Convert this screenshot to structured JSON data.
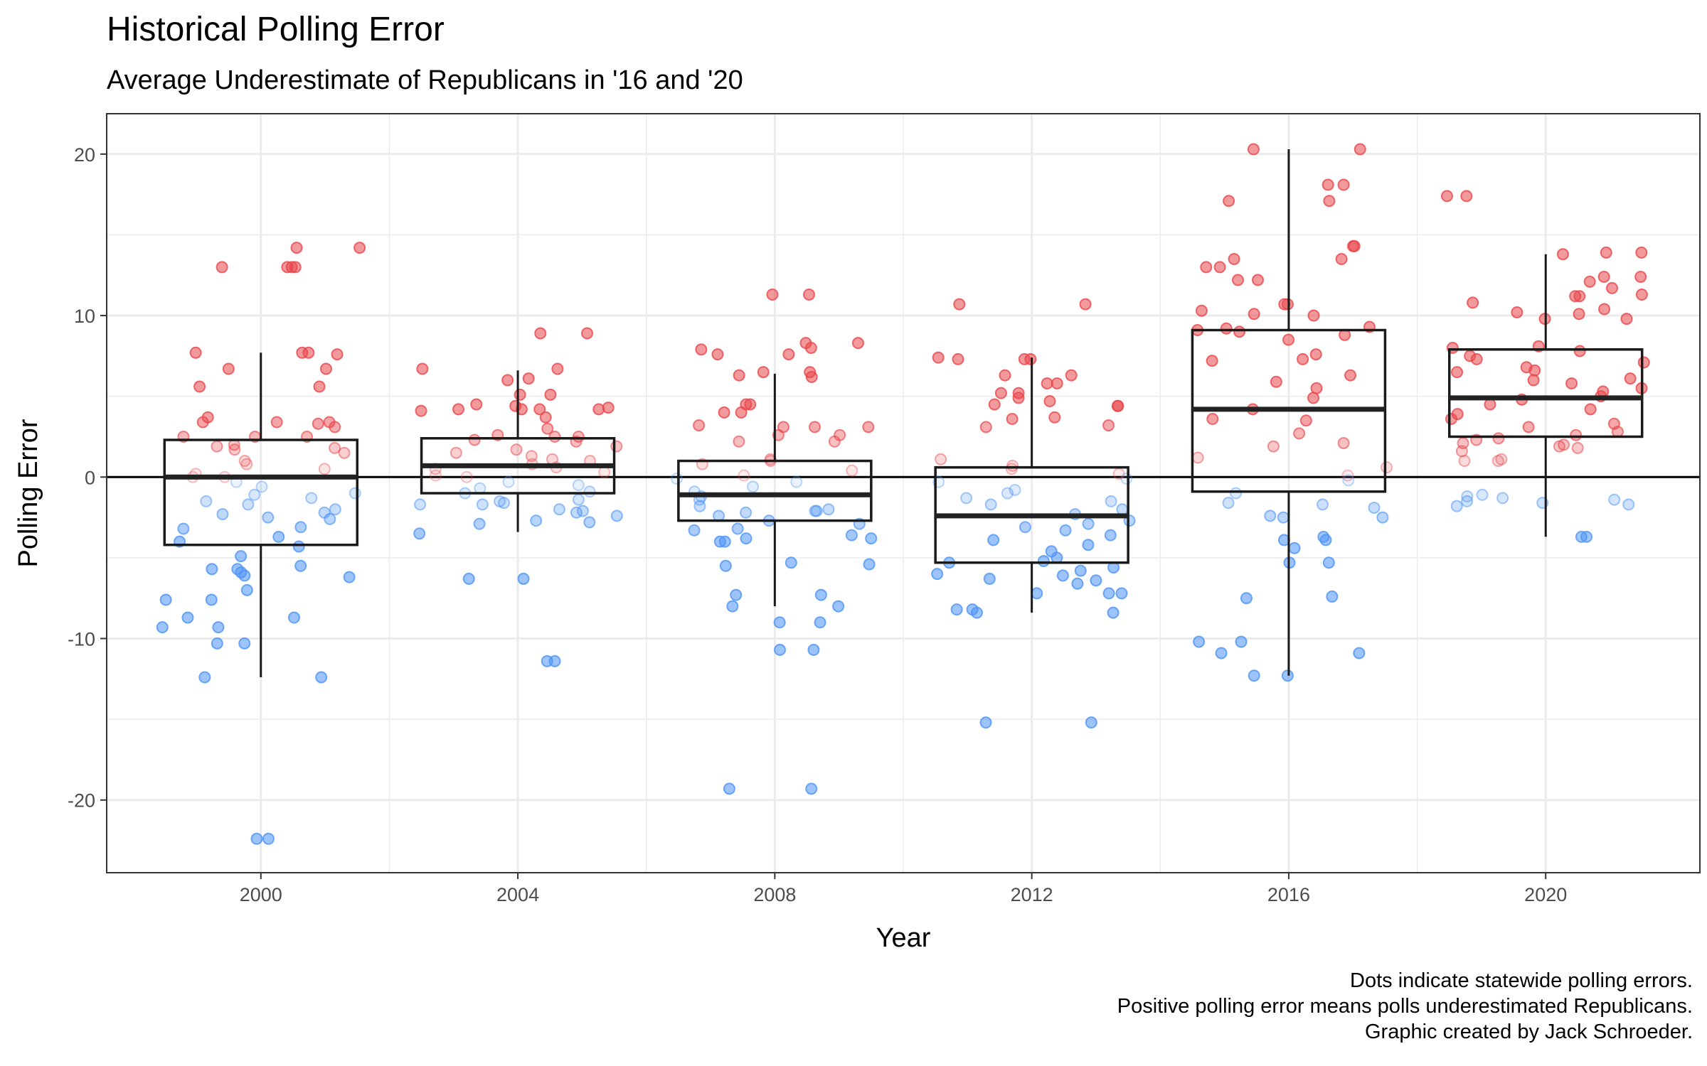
{
  "title": "Historical Polling Error",
  "subtitle": "Average Underestimate of Republicans in '16 and '20",
  "caption": [
    "Dots indicate statewide polling errors.",
    "Positive polling error means polls underestimated Republicans.",
    "Graphic created by Jack Schroeder."
  ],
  "colors": {
    "republican": "#e8464b",
    "democrat": "#4d94f5",
    "box": "#1a1a1a",
    "grid": "#ebebeb"
  },
  "chart_data": {
    "type": "box",
    "xlabel": "Year",
    "ylabel": "Polling Error",
    "xlim": [
      1997.6,
      2022.4
    ],
    "ylim": [
      -24.5,
      22.5
    ],
    "xticks": [
      2000,
      2004,
      2008,
      2012,
      2016,
      2020
    ],
    "yticks": [
      -20,
      -10,
      0,
      10,
      20
    ],
    "reference_line": 0,
    "grid": true,
    "boxes": [
      {
        "year": 2000,
        "whisker_low": -12.4,
        "q1": -4.2,
        "median": 0.0,
        "q3": 2.3,
        "whisker_high": 7.7
      },
      {
        "year": 2004,
        "whisker_low": -3.4,
        "q1": -1.0,
        "median": 0.7,
        "q3": 2.4,
        "whisker_high": 6.6
      },
      {
        "year": 2008,
        "whisker_low": -8.0,
        "q1": -2.7,
        "median": -1.1,
        "q3": 1.0,
        "whisker_high": 6.4
      },
      {
        "year": 2012,
        "whisker_low": -8.4,
        "q1": -5.3,
        "median": -2.4,
        "q3": 0.6,
        "whisker_high": 7.4
      },
      {
        "year": 2016,
        "whisker_low": -12.3,
        "q1": -0.9,
        "median": 4.2,
        "q3": 9.1,
        "whisker_high": 20.3
      },
      {
        "year": 2020,
        "whisker_low": -3.7,
        "q1": 2.5,
        "median": 4.9,
        "q3": 7.9,
        "whisker_high": 13.8
      }
    ],
    "points": [
      {
        "year": 2000,
        "values": [
          13.0,
          13.0,
          13.0,
          14.2,
          14.2,
          13.0,
          7.7,
          7.6,
          7.7,
          6.7,
          7.7,
          6.7,
          5.6,
          5.6,
          3.4,
          3.7,
          3.4,
          3.3,
          3.1,
          3.4,
          2.5,
          2.5,
          2.5,
          2.0,
          1.9,
          1.7,
          1.5,
          1.8,
          1.0,
          0.8,
          0.5,
          0.2,
          0.0,
          0.0,
          -0.3,
          -0.6,
          -1.0,
          -1.1,
          -1.3,
          -1.5,
          -1.7,
          -2.0,
          -2.2,
          -2.3,
          -2.5,
          -2.6,
          -3.1,
          -3.2,
          -3.7,
          -4.0,
          -4.3,
          -4.9,
          -5.5,
          -5.7,
          -5.7,
          -5.9,
          -6.1,
          -6.2,
          -7.0,
          -7.6,
          -7.6,
          -8.7,
          -8.7,
          -9.3,
          -9.3,
          -10.3,
          -10.3,
          -12.4,
          -12.4,
          -22.4,
          -22.4
        ]
      },
      {
        "year": 2004,
        "values": [
          8.9,
          8.9,
          6.7,
          6.7,
          6.1,
          6.0,
          5.1,
          5.1,
          4.5,
          4.4,
          4.3,
          4.2,
          4.2,
          4.2,
          4.2,
          4.1,
          3.7,
          3.0,
          2.6,
          2.5,
          2.5,
          2.3,
          2.2,
          1.9,
          1.7,
          1.5,
          1.3,
          1.1,
          1.0,
          0.8,
          0.6,
          0.5,
          0.3,
          0.1,
          0.0,
          -0.3,
          -0.5,
          -0.7,
          -0.9,
          -1.0,
          -1.4,
          -1.5,
          -1.6,
          -1.7,
          -1.7,
          -2.0,
          -2.1,
          -2.2,
          -2.4,
          -2.7,
          -2.8,
          -2.9,
          -3.5,
          -6.3,
          -6.3,
          -11.4,
          -11.4
        ]
      },
      {
        "year": 2008,
        "values": [
          11.3,
          11.3,
          8.3,
          8.3,
          8.0,
          7.9,
          7.6,
          7.6,
          6.5,
          6.5,
          6.3,
          6.2,
          4.5,
          4.5,
          4.0,
          4.0,
          3.2,
          3.1,
          3.1,
          3.1,
          2.6,
          2.6,
          2.2,
          2.2,
          1.1,
          1.0,
          0.8,
          0.4,
          0.1,
          -0.1,
          -0.3,
          -0.6,
          -0.9,
          -1.2,
          -1.4,
          -1.8,
          -2.0,
          -2.1,
          -2.1,
          -2.2,
          -2.4,
          -2.7,
          -2.9,
          -3.2,
          -3.3,
          -3.6,
          -3.8,
          -3.8,
          -4.0,
          -4.0,
          -5.3,
          -5.4,
          -5.5,
          -7.3,
          -7.3,
          -8.0,
          -8.0,
          -9.0,
          -9.0,
          -10.7,
          -10.7,
          -19.3,
          -19.3
        ]
      },
      {
        "year": 2012,
        "values": [
          10.7,
          10.7,
          7.4,
          7.3,
          7.3,
          7.3,
          6.3,
          6.3,
          5.8,
          5.8,
          5.2,
          5.2,
          4.9,
          4.7,
          4.5,
          4.4,
          4.4,
          3.7,
          3.6,
          3.2,
          3.1,
          1.1,
          0.7,
          0.5,
          0.2,
          -0.1,
          -0.3,
          -0.8,
          -1.0,
          -1.3,
          -1.5,
          -1.7,
          -2.0,
          -2.3,
          -2.7,
          -2.9,
          -3.1,
          -3.3,
          -3.6,
          -3.9,
          -4.2,
          -4.6,
          -5.0,
          -5.2,
          -5.3,
          -5.6,
          -5.8,
          -6.0,
          -6.1,
          -6.3,
          -6.4,
          -6.6,
          -7.2,
          -7.2,
          -7.2,
          -8.2,
          -8.2,
          -8.4,
          -8.4,
          -15.2,
          -15.2
        ]
      },
      {
        "year": 2016,
        "values": [
          20.3,
          20.3,
          18.1,
          18.1,
          17.1,
          17.1,
          14.3,
          14.3,
          13.5,
          13.5,
          13.0,
          13.0,
          12.2,
          12.2,
          10.7,
          10.7,
          10.3,
          10.1,
          10.0,
          9.3,
          9.2,
          9.1,
          9.0,
          8.8,
          8.5,
          7.6,
          7.3,
          7.2,
          6.3,
          5.9,
          5.5,
          4.9,
          4.2,
          3.6,
          3.5,
          2.7,
          2.1,
          1.9,
          1.2,
          0.6,
          0.1,
          -0.2,
          -1.0,
          -1.6,
          -1.7,
          -1.9,
          -2.4,
          -2.5,
          -2.5,
          -3.7,
          -3.9,
          -3.9,
          -4.4,
          -5.3,
          -5.3,
          -7.4,
          -7.5,
          -10.2,
          -10.2,
          -10.9,
          -10.9,
          -12.3,
          -12.3
        ]
      },
      {
        "year": 2020,
        "values": [
          17.4,
          17.4,
          13.9,
          13.9,
          13.8,
          12.4,
          12.4,
          12.1,
          11.7,
          11.3,
          11.2,
          11.2,
          10.8,
          10.4,
          10.2,
          10.1,
          9.8,
          9.8,
          8.1,
          8.0,
          7.8,
          7.5,
          7.3,
          7.1,
          6.8,
          6.6,
          6.5,
          6.1,
          6.0,
          5.8,
          5.5,
          5.3,
          5.0,
          4.8,
          4.5,
          4.2,
          3.9,
          3.6,
          3.3,
          3.1,
          2.8,
          2.6,
          2.4,
          2.3,
          2.1,
          2.0,
          1.9,
          1.8,
          1.6,
          1.1,
          1.0,
          1.0,
          -1.1,
          -1.2,
          -1.3,
          -1.4,
          -1.5,
          -1.6,
          -1.7,
          -1.8,
          -3.7,
          -3.7
        ]
      }
    ]
  }
}
